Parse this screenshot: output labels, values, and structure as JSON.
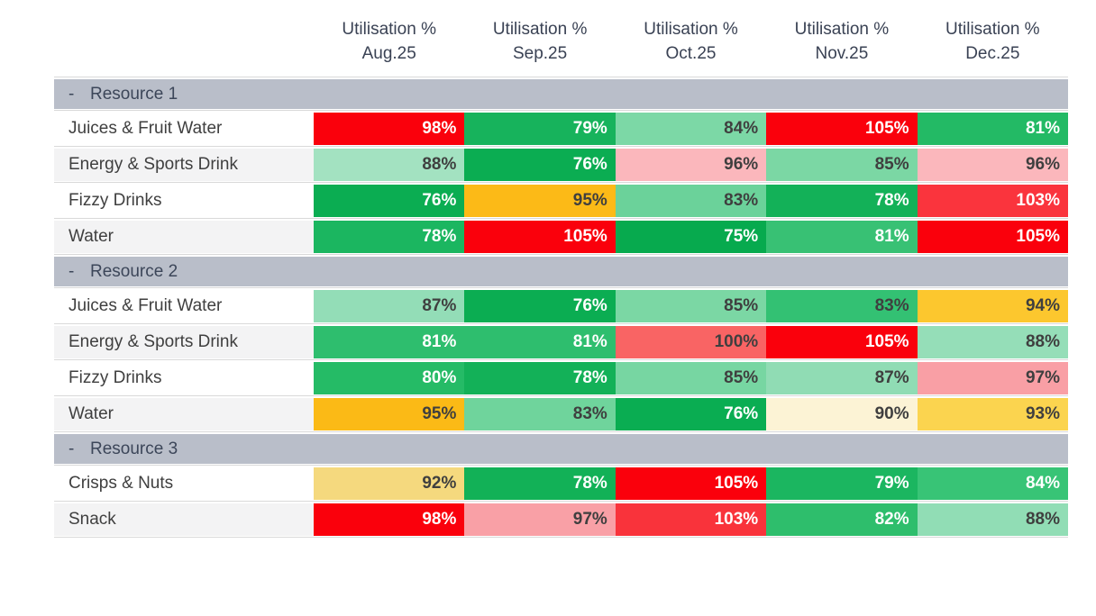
{
  "matrix": {
    "columns": [
      {
        "measure": "Utilisation %",
        "period": "Aug.25"
      },
      {
        "measure": "Utilisation %",
        "period": "Sep.25"
      },
      {
        "measure": "Utilisation %",
        "period": "Oct.25"
      },
      {
        "measure": "Utilisation %",
        "period": "Nov.25"
      },
      {
        "measure": "Utilisation %",
        "period": "Dec.25"
      }
    ],
    "groups": [
      {
        "collapse_glyph": "-",
        "label": "Resource 1",
        "rows": [
          {
            "label": "Juices & Fruit Water",
            "cells": [
              {
                "value": "98%",
                "bg": "#FA000C",
                "fg": "#FFFFFF"
              },
              {
                "value": "79%",
                "bg": "#17B35C",
                "fg": "#FFFFFF"
              },
              {
                "value": "84%",
                "bg": "#7CD8A6",
                "fg": "#3F3F3F"
              },
              {
                "value": "105%",
                "bg": "#FA000C",
                "fg": "#FFFFFF"
              },
              {
                "value": "81%",
                "bg": "#23BA65",
                "fg": "#FFFFFF"
              }
            ]
          },
          {
            "label": "Energy & Sports Drink",
            "cells": [
              {
                "value": "88%",
                "bg": "#A3E2C1",
                "fg": "#3F3F3F"
              },
              {
                "value": "76%",
                "bg": "#0BAD52",
                "fg": "#FFFFFF"
              },
              {
                "value": "96%",
                "bg": "#FBB7BC",
                "fg": "#3F3F3F"
              },
              {
                "value": "85%",
                "bg": "#7BD7A4",
                "fg": "#3F3F3F"
              },
              {
                "value": "96%",
                "bg": "#FBB7BC",
                "fg": "#3F3F3F"
              }
            ]
          },
          {
            "label": "Fizzy Drinks",
            "cells": [
              {
                "value": "76%",
                "bg": "#0BAD52",
                "fg": "#FFFFFF"
              },
              {
                "value": "95%",
                "bg": "#FCBA17",
                "fg": "#3F3F3F"
              },
              {
                "value": "83%",
                "bg": "#6BD29A",
                "fg": "#3F3F3F"
              },
              {
                "value": "78%",
                "bg": "#13B158",
                "fg": "#FFFFFF"
              },
              {
                "value": "103%",
                "bg": "#FA343D",
                "fg": "#FFFFFF"
              }
            ]
          },
          {
            "label": "Water",
            "cells": [
              {
                "value": "78%",
                "bg": "#1BB660",
                "fg": "#FFFFFF"
              },
              {
                "value": "105%",
                "bg": "#FA000C",
                "fg": "#FFFFFF"
              },
              {
                "value": "75%",
                "bg": "#07AA4E",
                "fg": "#FFFFFF"
              },
              {
                "value": "81%",
                "bg": "#38C174",
                "fg": "#FFFFFF"
              },
              {
                "value": "105%",
                "bg": "#FA000C",
                "fg": "#FFFFFF"
              }
            ]
          }
        ]
      },
      {
        "collapse_glyph": "-",
        "label": "Resource 2",
        "rows": [
          {
            "label": "Juices & Fruit Water",
            "cells": [
              {
                "value": "87%",
                "bg": "#93DDB7",
                "fg": "#3F3F3F"
              },
              {
                "value": "76%",
                "bg": "#0BAD52",
                "fg": "#FFFFFF"
              },
              {
                "value": "85%",
                "bg": "#7BD7A4",
                "fg": "#3F3F3F"
              },
              {
                "value": "83%",
                "bg": "#33C173",
                "fg": "#3F3F3F"
              },
              {
                "value": "94%",
                "bg": "#FCC72E",
                "fg": "#3F3F3F"
              }
            ]
          },
          {
            "label": "Energy & Sports Drink",
            "cells": [
              {
                "value": "81%",
                "bg": "#2EBE6E",
                "fg": "#FFFFFF"
              },
              {
                "value": "81%",
                "bg": "#2EBE6E",
                "fg": "#FFFFFF"
              },
              {
                "value": "100%",
                "bg": "#F96464",
                "fg": "#3F3F3F"
              },
              {
                "value": "105%",
                "bg": "#FA000C",
                "fg": "#FFFFFF"
              },
              {
                "value": "88%",
                "bg": "#95DEB8",
                "fg": "#3F3F3F"
              }
            ]
          },
          {
            "label": "Fizzy Drinks",
            "cells": [
              {
                "value": "80%",
                "bg": "#25BB66",
                "fg": "#FFFFFF"
              },
              {
                "value": "78%",
                "bg": "#13B158",
                "fg": "#FFFFFF"
              },
              {
                "value": "85%",
                "bg": "#77D6A2",
                "fg": "#3F3F3F"
              },
              {
                "value": "87%",
                "bg": "#90DCB4",
                "fg": "#3F3F3F"
              },
              {
                "value": "97%",
                "bg": "#F99FA5",
                "fg": "#3F3F3F"
              }
            ]
          },
          {
            "label": "Water",
            "cells": [
              {
                "value": "95%",
                "bg": "#FBBA16",
                "fg": "#3F3F3F"
              },
              {
                "value": "83%",
                "bg": "#6FD49C",
                "fg": "#3F3F3F"
              },
              {
                "value": "76%",
                "bg": "#0AAD52",
                "fg": "#FFFFFF"
              },
              {
                "value": "90%",
                "bg": "#FCF3D5",
                "fg": "#3F3F3F"
              },
              {
                "value": "93%",
                "bg": "#FBD44F",
                "fg": "#3F3F3F"
              }
            ]
          }
        ]
      },
      {
        "collapse_glyph": "-",
        "label": "Resource 3",
        "rows": [
          {
            "label": "Crisps & Nuts",
            "cells": [
              {
                "value": "92%",
                "bg": "#F5D97E",
                "fg": "#3F3F3F"
              },
              {
                "value": "78%",
                "bg": "#12B157",
                "fg": "#FFFFFF"
              },
              {
                "value": "105%",
                "bg": "#FA000C",
                "fg": "#FFFFFF"
              },
              {
                "value": "79%",
                "bg": "#1BB660",
                "fg": "#FFFFFF"
              },
              {
                "value": "84%",
                "bg": "#38C476",
                "fg": "#FFFFFF"
              }
            ]
          },
          {
            "label": "Snack",
            "cells": [
              {
                "value": "98%",
                "bg": "#FA000C",
                "fg": "#FFFFFF"
              },
              {
                "value": "97%",
                "bg": "#F9A0A6",
                "fg": "#3F3F3F"
              },
              {
                "value": "103%",
                "bg": "#F9333B",
                "fg": "#FFFFFF"
              },
              {
                "value": "82%",
                "bg": "#2EBE6C",
                "fg": "#FFFFFF"
              },
              {
                "value": "88%",
                "bg": "#91DDB5",
                "fg": "#3F3F3F"
              }
            ]
          }
        ]
      }
    ],
    "style": {
      "group_bar_bg": "#B9BEC9",
      "group_text": "#3C4659",
      "header_text": "#3A4254",
      "label_text": "#3F3F3F",
      "row_alt_bg": "#F3F3F4",
      "grid_line": "#D9D9D9"
    }
  },
  "chart_data": {
    "type": "heatmap",
    "measure": "Utilisation %",
    "columns": [
      "Aug.25",
      "Sep.25",
      "Oct.25",
      "Nov.25",
      "Dec.25"
    ],
    "rows": [
      {
        "group": "Resource 1",
        "label": "Juices & Fruit Water",
        "values": [
          98,
          79,
          84,
          105,
          81
        ]
      },
      {
        "group": "Resource 1",
        "label": "Energy & Sports Drink",
        "values": [
          88,
          76,
          96,
          85,
          96
        ]
      },
      {
        "group": "Resource 1",
        "label": "Fizzy Drinks",
        "values": [
          76,
          95,
          83,
          78,
          103
        ]
      },
      {
        "group": "Resource 1",
        "label": "Water",
        "values": [
          78,
          105,
          75,
          81,
          105
        ]
      },
      {
        "group": "Resource 2",
        "label": "Juices & Fruit Water",
        "values": [
          87,
          76,
          85,
          83,
          94
        ]
      },
      {
        "group": "Resource 2",
        "label": "Energy & Sports Drink",
        "values": [
          81,
          81,
          100,
          105,
          88
        ]
      },
      {
        "group": "Resource 2",
        "label": "Fizzy Drinks",
        "values": [
          80,
          78,
          85,
          87,
          97
        ]
      },
      {
        "group": "Resource 2",
        "label": "Water",
        "values": [
          95,
          83,
          76,
          90,
          93
        ]
      },
      {
        "group": "Resource 3",
        "label": "Crisps & Nuts",
        "values": [
          92,
          78,
          105,
          79,
          84
        ]
      },
      {
        "group": "Resource 3",
        "label": "Snack",
        "values": [
          98,
          97,
          103,
          82,
          88
        ]
      }
    ],
    "legend_position": "none",
    "grid": false,
    "color_coding": "conditional formatting per row: green = low utilisation, amber ~90-95, pink/red = high (>=96)"
  }
}
